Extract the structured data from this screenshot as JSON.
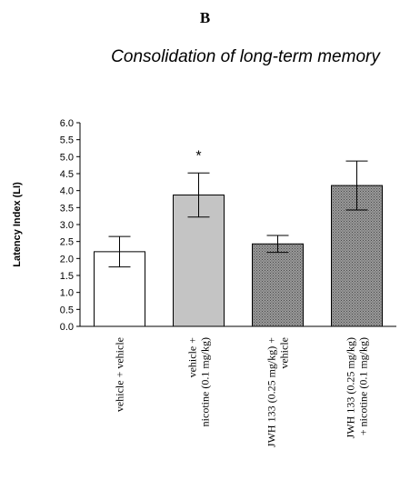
{
  "panel_label": "B",
  "chart_data": {
    "type": "bar",
    "title": "Consolidation of long-term memory",
    "ylabel": "Latency Index (LI)",
    "xlabel": "",
    "ylim": [
      0,
      6.0
    ],
    "ytick_step": 0.5,
    "categories": [
      [
        "vehicle + vehicle"
      ],
      [
        "vehicle +",
        "nicotine (0.1 mg/kg)"
      ],
      [
        "JWH 133 (0.25 mg/kg) +",
        "vehicle"
      ],
      [
        "JWH 133 (0.25 mg/kg)",
        "+ nicotine (0.1 mg/kg)"
      ]
    ],
    "values": [
      2.2,
      3.87,
      2.43,
      4.15
    ],
    "errors": [
      0.45,
      0.65,
      0.25,
      0.72
    ],
    "fills": [
      "white",
      "light-gray",
      "hatched",
      "hatched"
    ],
    "annotations": [
      {
        "index": 1,
        "text": "*"
      }
    ],
    "grid": false,
    "legend": "none"
  }
}
